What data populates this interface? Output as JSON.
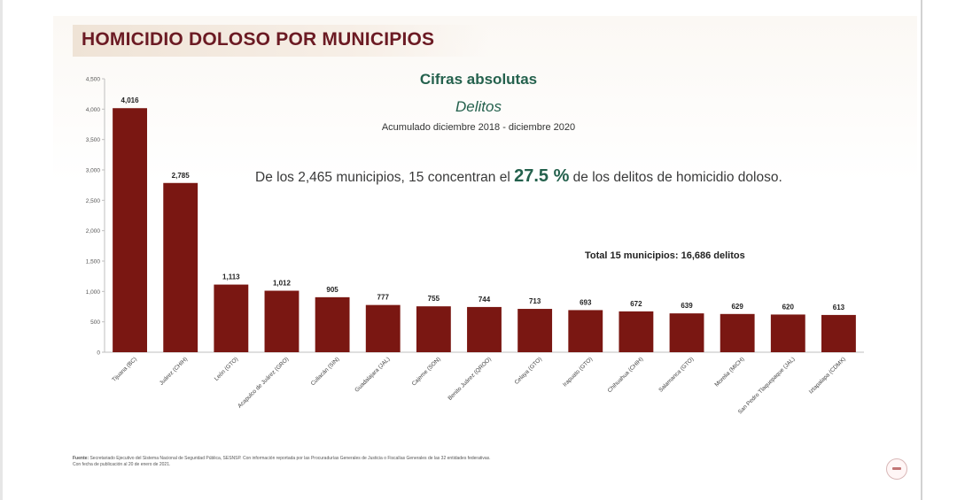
{
  "slide": {
    "title": "HOMICIDIO DOLOSO POR MUNICIPIOS",
    "subtitle": "Cifras absolutas",
    "unit": "Delitos",
    "period": "Acumulado diciembre 2018 - diciembre 2020",
    "statement_before": "De los 2,465 municipios, 15 concentran el ",
    "statement_highlight": "27.5 %",
    "statement_after": " de los delitos de homicidio doloso.",
    "total": "Total 15 municipios: 16,686 delitos",
    "source_label": "Fuente:",
    "source_text": "Secretariado Ejecutivo del Sistema Nacional de Seguridad Pública, SESNSP. Con información reportada por las Procuradurías Generales de Justicia o Fiscalías Generales de las 32 entidades federativas.",
    "source_date": "Con fecha de publicación al 20 de enero de 2021."
  },
  "colors": {
    "bar": "#7a1712",
    "title": "#6b1a23",
    "accent_green": "#24614d"
  },
  "chart_data": {
    "type": "bar",
    "categories": [
      "Tijuana (BC)",
      "Juárez (CHIH)",
      "León (GTO)",
      "Acapulco de Juárez (GRO)",
      "Culiacán (SIN)",
      "Guadalajara (JAL)",
      "Cajeme (SON)",
      "Benito Juárez (QROO)",
      "Celaya (GTO)",
      "Irapuato (GTO)",
      "Chihuahua (CHIH)",
      "Salamanca (GTO)",
      "Morelia (MICH)",
      "San Pedro Tlaquepaque (JAL)",
      "Iztapalapa (CDMX)"
    ],
    "values": [
      4016,
      2785,
      1113,
      1012,
      905,
      777,
      755,
      744,
      713,
      693,
      672,
      639,
      629,
      620,
      613
    ],
    "value_labels": [
      "4,016",
      "2,785",
      "1,113",
      "1,012",
      "905",
      "777",
      "755",
      "744",
      "713",
      "693",
      "672",
      "639",
      "629",
      "620",
      "613"
    ],
    "ylim": [
      0,
      4500
    ],
    "yticks": [
      0,
      500,
      1000,
      1500,
      2000,
      2500,
      3000,
      3500,
      4000,
      4500
    ],
    "ytick_labels": [
      "0",
      "500",
      "1,000",
      "1,500",
      "2,000",
      "2,500",
      "3,000",
      "3,500",
      "4,000",
      "4,500"
    ],
    "grid": false,
    "legend": "none"
  }
}
